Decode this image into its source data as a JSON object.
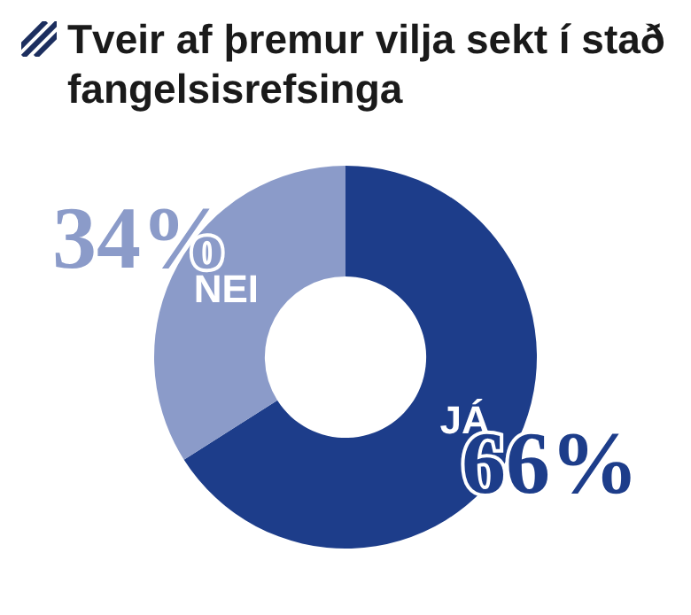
{
  "chart_data": {
    "type": "donut",
    "title": "Tveir af  þremur vilja sekt í stað fangelsisrefsinga",
    "categories": [
      "JÁ",
      "NEI"
    ],
    "values": [
      66,
      34
    ],
    "value_labels": [
      "66%",
      "34%"
    ],
    "colors": [
      "#1d3d8a",
      "#8b9bc9"
    ],
    "legend": false
  }
}
